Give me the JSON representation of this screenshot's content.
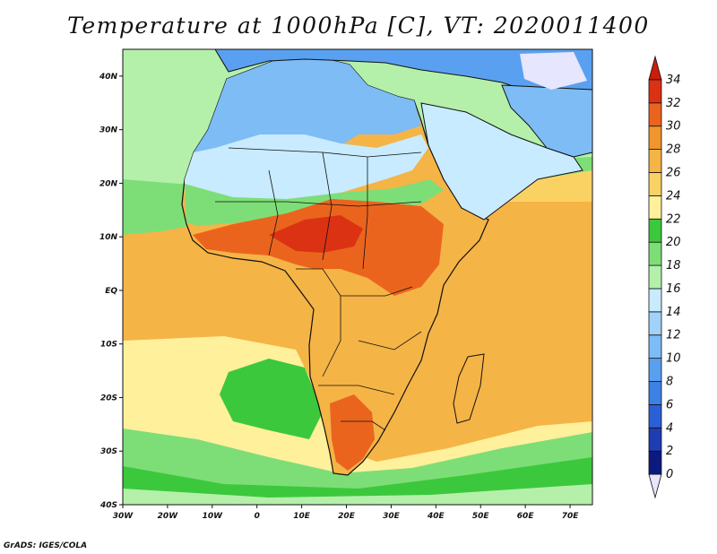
{
  "title": "Temperature at 1000hPa [C], VT: 2020011400",
  "credit": "GrADS: IGES/COLA",
  "map": {
    "variable": "Temperature",
    "level": "1000hPa",
    "units": "C",
    "valid_time": "2020011400",
    "lon_range": [
      -30,
      75
    ],
    "lat_range": [
      -40,
      45
    ],
    "lon_ticks": [
      {
        "value": -30,
        "label": "30W"
      },
      {
        "value": -20,
        "label": "20W"
      },
      {
        "value": -10,
        "label": "10W"
      },
      {
        "value": 0,
        "label": "0"
      },
      {
        "value": 10,
        "label": "10E"
      },
      {
        "value": 20,
        "label": "20E"
      },
      {
        "value": 30,
        "label": "30E"
      },
      {
        "value": 40,
        "label": "40E"
      },
      {
        "value": 50,
        "label": "50E"
      },
      {
        "value": 60,
        "label": "60E"
      },
      {
        "value": 70,
        "label": "70E"
      }
    ],
    "lat_ticks": [
      {
        "value": 40,
        "label": "40N"
      },
      {
        "value": 30,
        "label": "30N"
      },
      {
        "value": 20,
        "label": "20N"
      },
      {
        "value": 10,
        "label": "10N"
      },
      {
        "value": 0,
        "label": "EQ"
      },
      {
        "value": -10,
        "label": "10S"
      },
      {
        "value": -20,
        "label": "20S"
      },
      {
        "value": -30,
        "label": "30S"
      },
      {
        "value": -40,
        "label": "40S"
      }
    ]
  },
  "colorbar": {
    "levels": [
      "0",
      "2",
      "4",
      "6",
      "8",
      "10",
      "12",
      "14",
      "16",
      "18",
      "20",
      "22",
      "24",
      "26",
      "28",
      "30",
      "32",
      "34"
    ],
    "colors": [
      "#e6e6ff",
      "#0c1a80",
      "#1e3cb4",
      "#2a5fd6",
      "#3c82e6",
      "#5aa0f0",
      "#7dbcf5",
      "#a0d2fa",
      "#c8ebff",
      "#b4f0aa",
      "#7dde78",
      "#3cc83c",
      "#fff09b",
      "#fad264",
      "#f5b446",
      "#f0962d",
      "#eb641e",
      "#dc3214",
      "#c81e0a"
    ]
  },
  "colors": {
    "ocean_tropical": "#f5b446",
    "ocean_north": "#fad264",
    "ocean_south_mid": "#fff09b",
    "ocean_south_cold": "#3cc83c",
    "border": "#111111"
  }
}
